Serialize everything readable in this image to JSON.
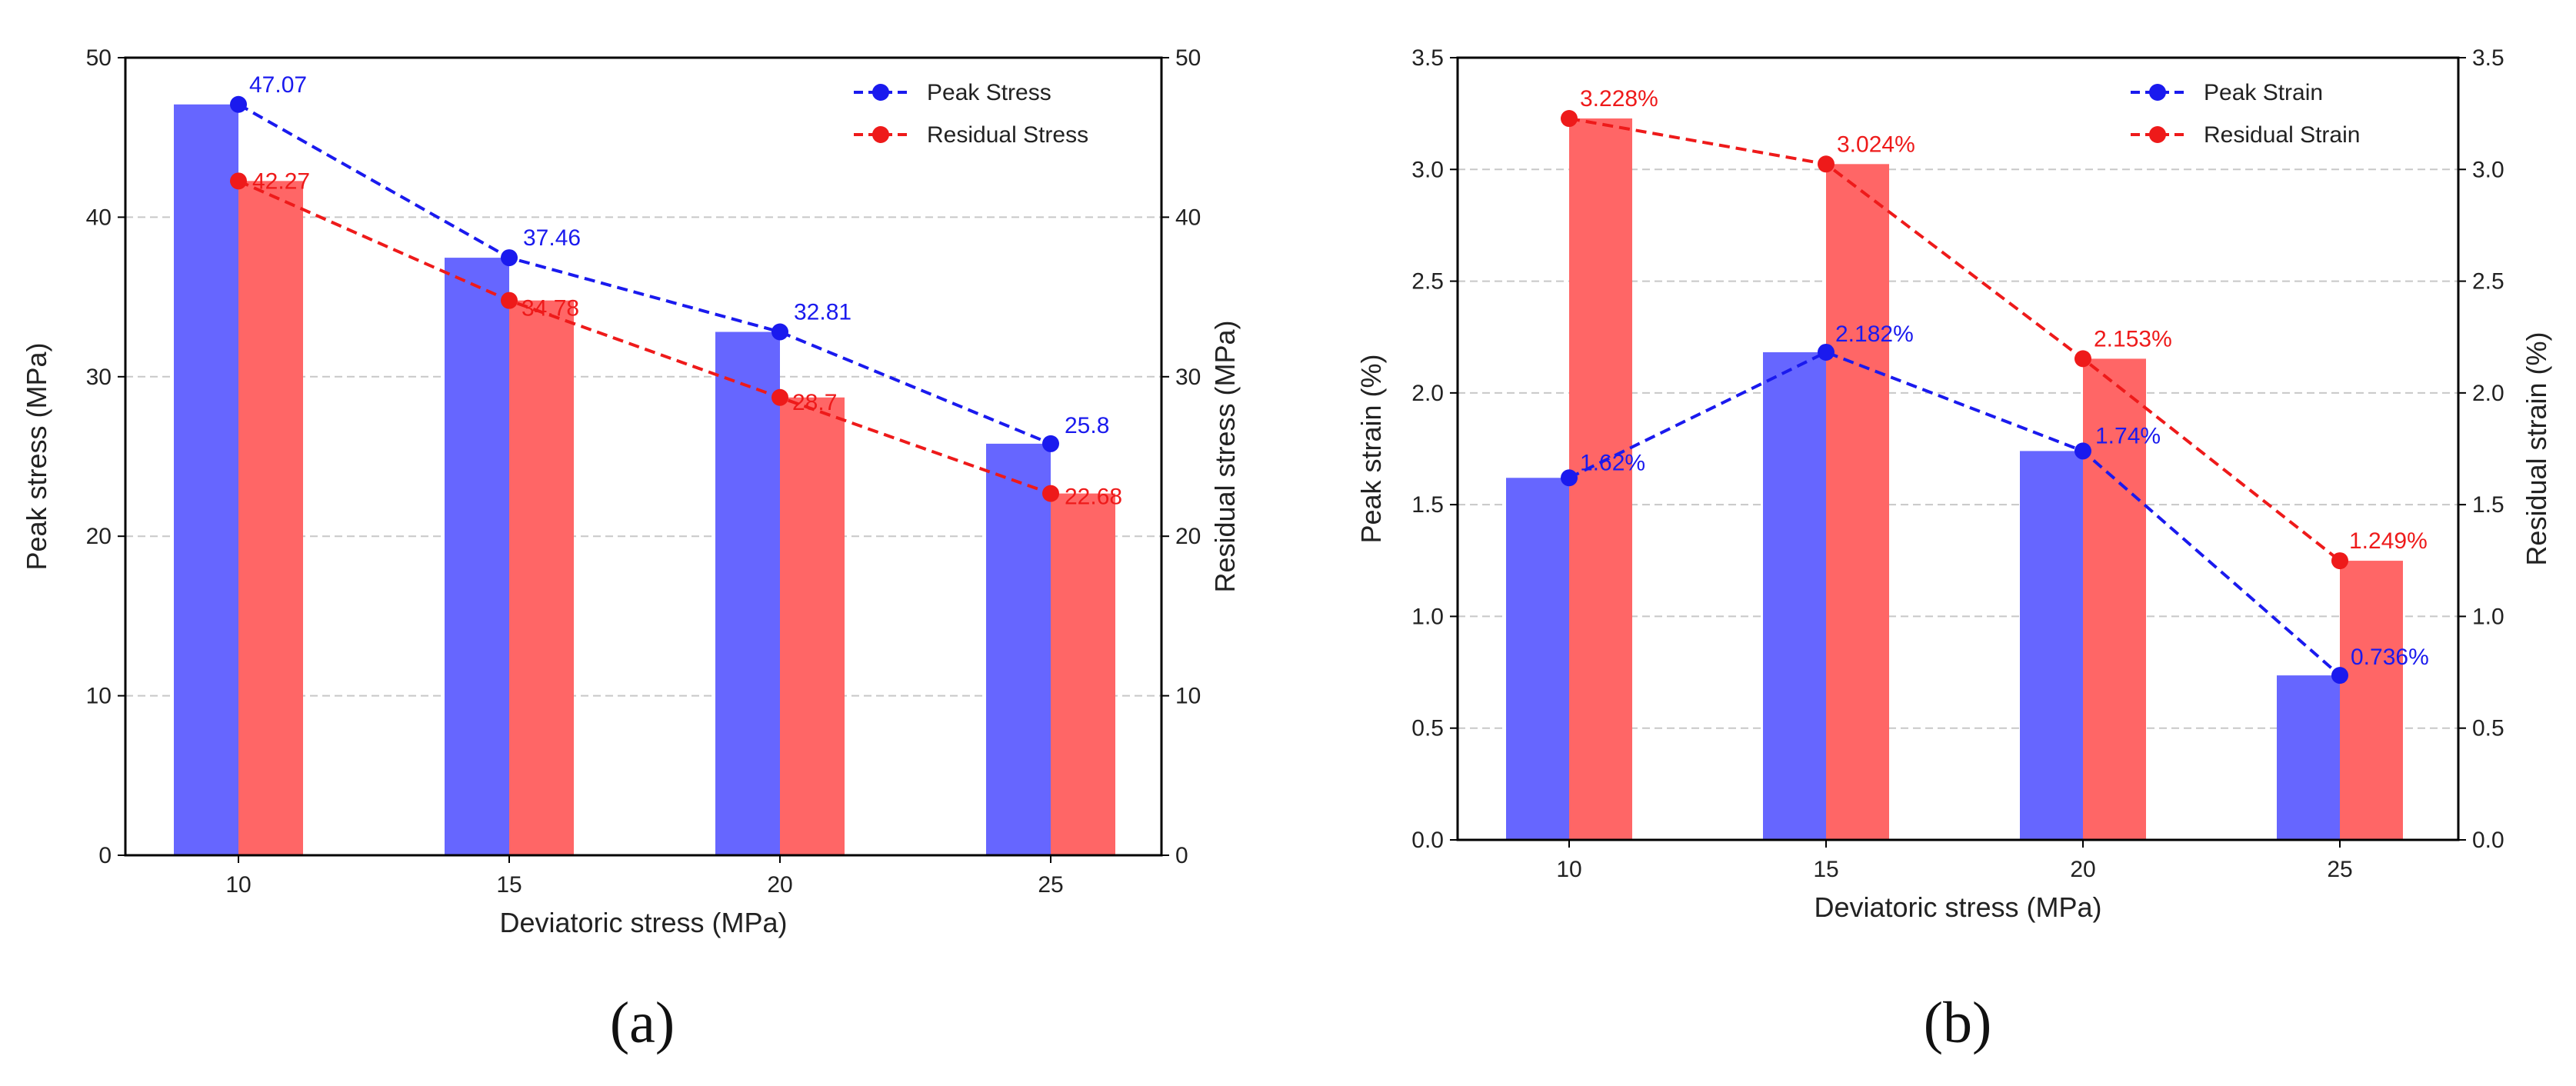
{
  "colors": {
    "peak_bar": "#6666ff",
    "residual_bar": "#ff6666",
    "peak_line": "#1a1aee",
    "residual_line": "#ee1a1a",
    "grid": "#c8c8c8",
    "axis": "#000000"
  },
  "chart_data": [
    {
      "type": "bar",
      "panel_label": "(a)",
      "categories": [
        "10",
        "15",
        "20",
        "25"
      ],
      "xlabel": "Deviatoric stress (MPa)",
      "ylabel": "Peak stress (MPa)",
      "ylabel_right": "Residual stress (MPa)",
      "ylim": [
        0,
        50
      ],
      "yticks": [
        0,
        10,
        20,
        30,
        40,
        50
      ],
      "ytick_labels": [
        "0",
        "10",
        "20",
        "30",
        "40",
        "50"
      ],
      "grid": "horizontal dashed",
      "legend_position": "top-right",
      "series": [
        {
          "name": "Peak Stress",
          "kind": "bar+dashed-line",
          "values": [
            47.07,
            37.46,
            32.81,
            25.8
          ],
          "labels": [
            "47.07",
            "37.46",
            "32.81",
            "25.8"
          ]
        },
        {
          "name": "Residual Stress",
          "kind": "bar+dashed-line",
          "values": [
            42.27,
            34.78,
            28.7,
            22.68
          ],
          "labels": [
            "42.27",
            "34.78",
            "28.7",
            "22.68"
          ]
        }
      ]
    },
    {
      "type": "bar",
      "panel_label": "(b)",
      "categories": [
        "10",
        "15",
        "20",
        "25"
      ],
      "xlabel": "Deviatoric stress (MPa)",
      "ylabel": "Peak strain (%)",
      "ylabel_right": "Residual strain (%)",
      "ylim": [
        0,
        3.5
      ],
      "yticks": [
        0,
        0.5,
        1,
        1.5,
        2,
        2.5,
        3,
        3.5
      ],
      "ytick_labels": [
        "0.0",
        "0.5",
        "1.0",
        "1.5",
        "2.0",
        "2.5",
        "3.0",
        "3.5"
      ],
      "grid": "horizontal dashed",
      "legend_position": "top-right",
      "series": [
        {
          "name": "Peak Strain",
          "kind": "bar+dashed-line",
          "values": [
            1.62,
            2.182,
            1.74,
            0.736
          ],
          "labels": [
            "1.62%",
            "2.182%",
            "1.74%",
            "0.736%"
          ]
        },
        {
          "name": "Residual Strain",
          "kind": "bar+dashed-line",
          "values": [
            3.228,
            3.024,
            2.153,
            1.249
          ],
          "labels": [
            "3.228%",
            "3.024%",
            "2.153%",
            "1.249%"
          ]
        }
      ]
    }
  ]
}
